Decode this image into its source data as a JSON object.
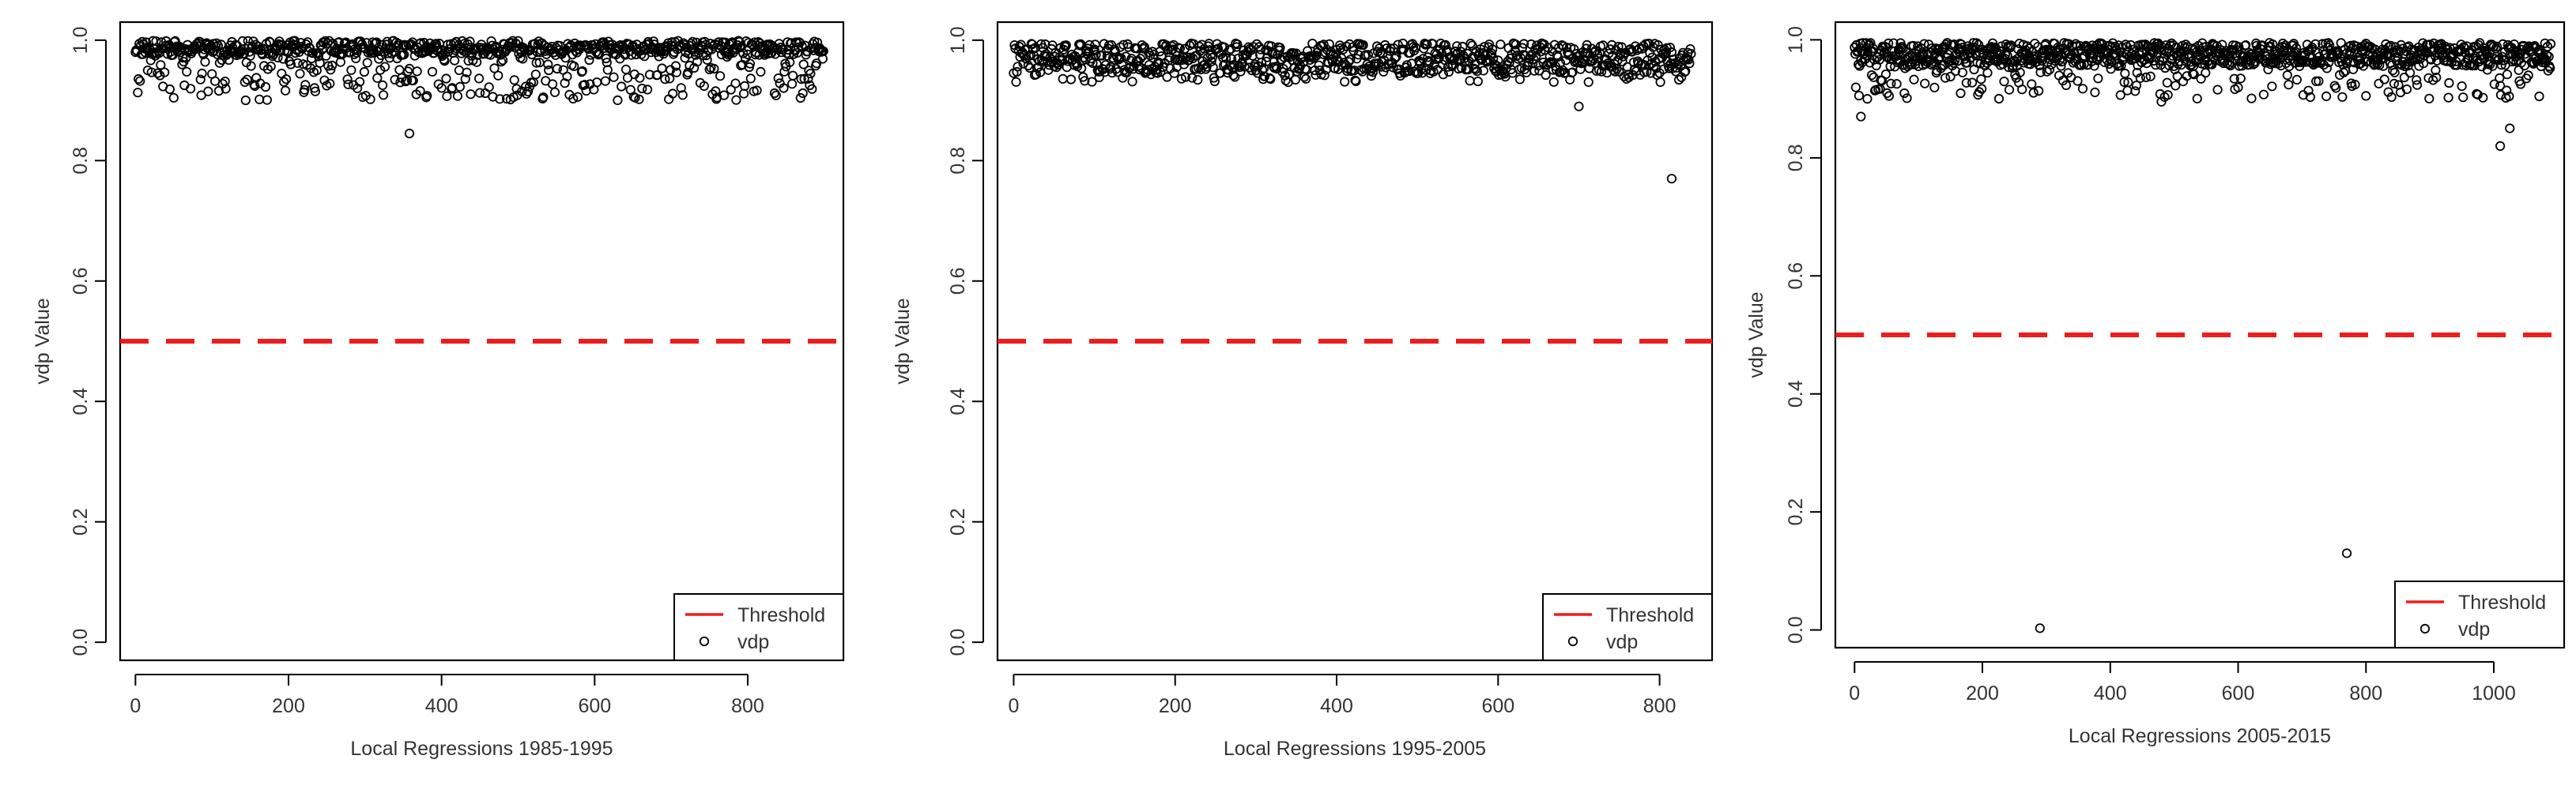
{
  "charts": [
    {
      "type": "scatter",
      "xlabel": "Local Regressions 1985-1995",
      "ylabel": "vdp Value",
      "xlim": [
        -20,
        925
      ],
      "ylim": [
        -0.03,
        1.03
      ],
      "xticks": [
        0,
        200,
        400,
        600,
        800
      ],
      "yticks": [
        0.0,
        0.2,
        0.4,
        0.6,
        0.8,
        1.0
      ],
      "n": 900,
      "base_range": [
        0.975,
        0.999
      ],
      "dip_probability": 0.28,
      "dip_min": 0.9,
      "threshold": 0.5,
      "legend": [
        "Threshold",
        "vdp"
      ],
      "outliers": [
        {
          "x": 358,
          "y": 0.845
        },
        {
          "x": 380,
          "y": 0.905
        },
        {
          "x": 95,
          "y": 0.915
        },
        {
          "x": 505,
          "y": 0.915
        },
        {
          "x": 290,
          "y": 0.92
        }
      ]
    },
    {
      "type": "scatter",
      "xlabel": "Local Regressions 1995-2005",
      "ylabel": "vdp Value",
      "xlim": [
        -20,
        865
      ],
      "ylim": [
        -0.03,
        1.03
      ],
      "xticks": [
        0,
        200,
        400,
        600,
        800
      ],
      "yticks": [
        0.0,
        0.2,
        0.4,
        0.6,
        0.8,
        1.0
      ],
      "n": 840,
      "base_range": [
        0.945,
        0.995
      ],
      "dip_probability": 0.08,
      "dip_min": 0.93,
      "threshold": 0.5,
      "legend": [
        "Threshold",
        "vdp"
      ],
      "outliers": [
        {
          "x": 700,
          "y": 0.89
        },
        {
          "x": 815,
          "y": 0.77
        },
        {
          "x": 310,
          "y": 0.94
        }
      ]
    },
    {
      "type": "scatter",
      "xlabel": "Local Regressions 2005-2015",
      "ylabel": "vdp Value",
      "xlim": [
        -30,
        1110
      ],
      "ylim": [
        -0.03,
        1.03
      ],
      "xticks": [
        0,
        200,
        400,
        600,
        800,
        1000
      ],
      "yticks": [
        0.0,
        0.2,
        0.4,
        0.6,
        0.8,
        1.0
      ],
      "n": 1090,
      "base_range": [
        0.955,
        0.995
      ],
      "dip_probability": 0.16,
      "dip_min": 0.9,
      "threshold": 0.5,
      "legend": [
        "Threshold",
        "vdp"
      ],
      "outliers": [
        {
          "x": 290,
          "y": 0.003
        },
        {
          "x": 770,
          "y": 0.13
        },
        {
          "x": 1010,
          "y": 0.82
        },
        {
          "x": 1025,
          "y": 0.85
        },
        {
          "x": 10,
          "y": 0.87
        },
        {
          "x": 20,
          "y": 0.9
        },
        {
          "x": 480,
          "y": 0.895
        },
        {
          "x": 800,
          "y": 0.905
        },
        {
          "x": 1040,
          "y": 0.93
        }
      ]
    }
  ]
}
